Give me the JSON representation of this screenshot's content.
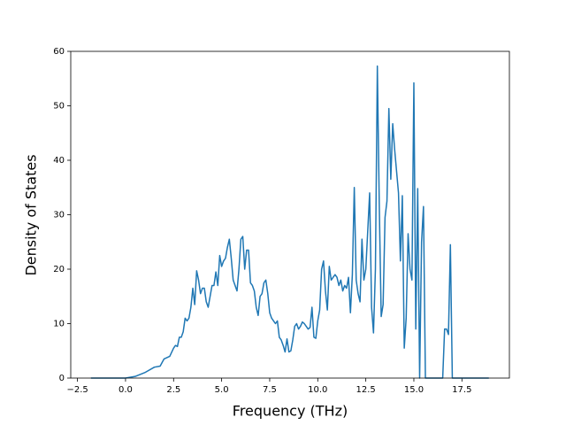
{
  "chart_data": {
    "type": "line",
    "xlabel": "Frequency (THz)",
    "ylabel": "Density of States",
    "color": "#1f77b4",
    "xlim": [
      -2.85,
      19.97
    ],
    "ylim": [
      0,
      60
    ],
    "xticks": [
      {
        "value": -2.5,
        "label": "−2.5"
      },
      {
        "value": 0,
        "label": "0.0"
      },
      {
        "value": 2.5,
        "label": "2.5"
      },
      {
        "value": 5,
        "label": "5.0"
      },
      {
        "value": 7.5,
        "label": "7.5"
      },
      {
        "value": 10,
        "label": "10.0"
      },
      {
        "value": 12.5,
        "label": "12.5"
      },
      {
        "value": 15,
        "label": "15.0"
      },
      {
        "value": 17.5,
        "label": "17.5"
      }
    ],
    "yticks": [
      0,
      10,
      20,
      30,
      40,
      50,
      60
    ],
    "x": [
      -1.8,
      -1.0,
      0.0,
      0.5,
      1.0,
      1.5,
      1.8,
      2.0,
      2.3,
      2.5,
      2.6,
      2.7,
      2.8,
      2.9,
      3.0,
      3.1,
      3.2,
      3.3,
      3.4,
      3.5,
      3.6,
      3.7,
      3.8,
      3.9,
      4.0,
      4.1,
      4.2,
      4.3,
      4.4,
      4.5,
      4.6,
      4.7,
      4.8,
      4.9,
      5.0,
      5.1,
      5.2,
      5.3,
      5.4,
      5.5,
      5.6,
      5.7,
      5.8,
      5.9,
      6.0,
      6.1,
      6.2,
      6.3,
      6.4,
      6.5,
      6.6,
      6.7,
      6.8,
      6.9,
      7.0,
      7.1,
      7.2,
      7.3,
      7.4,
      7.5,
      7.6,
      7.7,
      7.8,
      7.9,
      8.0,
      8.1,
      8.2,
      8.3,
      8.4,
      8.5,
      8.6,
      8.7,
      8.8,
      8.9,
      9.0,
      9.1,
      9.2,
      9.3,
      9.4,
      9.5,
      9.6,
      9.7,
      9.8,
      9.9,
      10.0,
      10.1,
      10.2,
      10.3,
      10.4,
      10.5,
      10.6,
      10.7,
      10.8,
      10.9,
      11.0,
      11.1,
      11.2,
      11.3,
      11.4,
      11.5,
      11.6,
      11.7,
      11.8,
      11.9,
      12.0,
      12.1,
      12.2,
      12.3,
      12.4,
      12.5,
      12.6,
      12.7,
      12.8,
      12.9,
      13.0,
      13.1,
      13.2,
      13.3,
      13.4,
      13.5,
      13.6,
      13.7,
      13.8,
      13.9,
      14.0,
      14.1,
      14.2,
      14.3,
      14.4,
      14.5,
      14.6,
      14.7,
      14.8,
      14.9,
      15.0,
      15.1,
      15.2,
      15.3,
      15.4,
      15.5,
      15.6,
      16.5,
      16.6,
      16.7,
      16.8,
      16.9,
      17.0,
      18.9
    ],
    "values": [
      0,
      0,
      0,
      0.3,
      1,
      2,
      2.2,
      3.5,
      4,
      5.5,
      6,
      5.8,
      7.5,
      7.5,
      8.5,
      11,
      10.5,
      11,
      13,
      16.5,
      13.5,
      19.7,
      18,
      15.5,
      16.5,
      16.5,
      14,
      13,
      15,
      17,
      17,
      19.5,
      17,
      22.5,
      20.5,
      21.5,
      22,
      24,
      25.5,
      22,
      18,
      17,
      16,
      20,
      25.5,
      26,
      20,
      23.5,
      23.5,
      17.5,
      17,
      16,
      13,
      11.5,
      15,
      15.5,
      17.5,
      18,
      15.5,
      12,
      11,
      10.5,
      10,
      10.5,
      7.5,
      7,
      6,
      4.8,
      7.2,
      4.8,
      5,
      7,
      9.5,
      10,
      9,
      9.5,
      10.3,
      10,
      9.5,
      9,
      9.3,
      13,
      7.5,
      7.3,
      10.5,
      12.5,
      20,
      21.5,
      16,
      12.5,
      20.5,
      18,
      18.5,
      19,
      18.5,
      17,
      18,
      16,
      17,
      16.5,
      18.5,
      12,
      19,
      35,
      18,
      15.5,
      14,
      25.5,
      18,
      20,
      27,
      34,
      13,
      8.3,
      20,
      57.3,
      32,
      11.3,
      13.5,
      29.5,
      32.5,
      49.5,
      36.5,
      46.7,
      42,
      38,
      34,
      21.5,
      33.5,
      5.5,
      11,
      26.5,
      20,
      18,
      54.2,
      9,
      34.8,
      0,
      25,
      31.5,
      0,
      0,
      9,
      9,
      8,
      24.5,
      0,
      0
    ]
  }
}
